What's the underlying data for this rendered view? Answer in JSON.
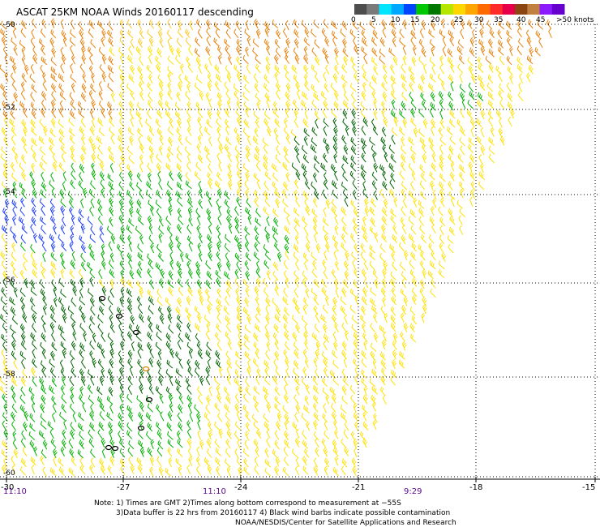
{
  "title": "ASCAT 25KM NOAA Winds 20160117 descending",
  "legend": {
    "colors": [
      "#4d4d4d",
      "#7a7a7a",
      "#00e5ff",
      "#00a8ff",
      "#0044ff",
      "#00c800",
      "#007800",
      "#b4e600",
      "#ffd700",
      "#ffa500",
      "#ff6a00",
      "#ff2a2a",
      "#e6004c",
      "#8b4513",
      "#c08040",
      "#8c1aff",
      "#6600cc"
    ],
    "labels": [
      "0",
      "5",
      "10",
      "15",
      "20",
      "25",
      "30",
      "35",
      "40",
      "45",
      ">50 knots"
    ]
  },
  "axes": {
    "lat_labels": [
      "-50",
      "-52",
      "-54",
      "-56",
      "-58",
      "-60"
    ],
    "lon_labels": [
      "-30",
      "-27",
      "-24",
      "-21",
      "-18",
      "-15"
    ]
  },
  "pass_times": [
    "11:10",
    "11:10",
    "9:29"
  ],
  "notes": {
    "line1": "Note: 1) Times are GMT 2)Times along bottom correspond to measurement at −55S",
    "line2": "3)Data buffer is 22 hrs from 20160117 4) Black wind barbs indicate possible contamination",
    "line3": "NOAA/NESDIS/Center for Satellite Applications and Research"
  },
  "wind_color_zones": {
    "far_north_band": "#e8820a",
    "north_band": "#ffc820",
    "main_swath": "#ffe100",
    "strong_wind_patch": "#00b000",
    "dark_green_patch": "#006400",
    "calm_patch": "#1a3cff"
  }
}
